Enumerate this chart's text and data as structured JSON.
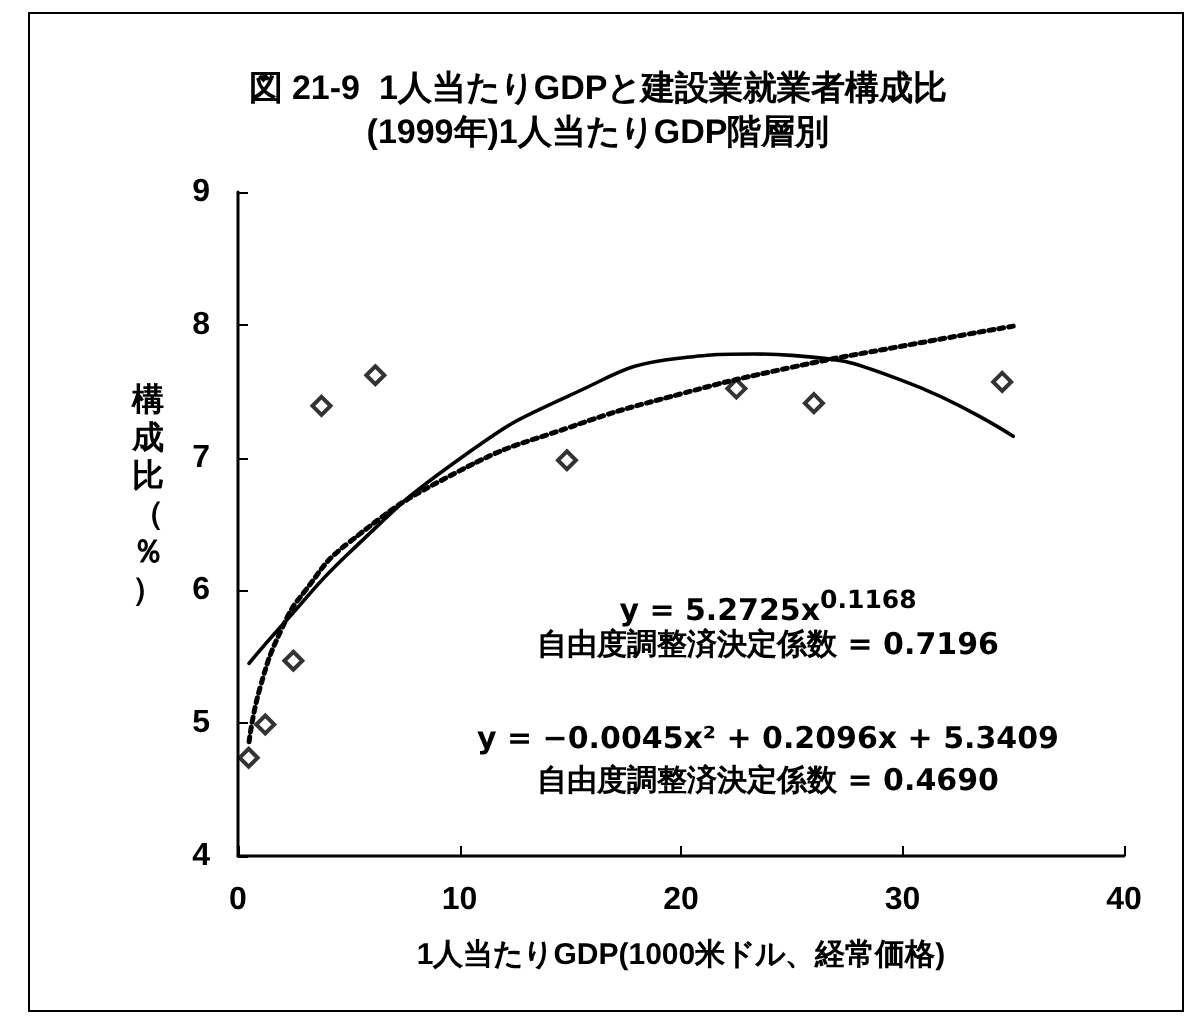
{
  "chart_data": {
    "type": "scatter",
    "title": "図 21-9  1人当たりGDPと建設業就業者構成比\n(1999年)1人当たりGDP階層別",
    "xlabel": "1人当たりGDP(1000米ドル、経常価格)",
    "ylabel": "構成比（％）",
    "xlim": [
      0,
      40
    ],
    "xticks": [
      0,
      10,
      20,
      30,
      40
    ],
    "ylim": [
      4,
      9
    ],
    "yticks": [
      4,
      5,
      6,
      7,
      8,
      9
    ],
    "grid": false,
    "annotations": [
      "y = 5.2725x$^{0.1168}$",
      "自由度調整済決定係数 = 0.7196",
      "y = −0.0045x² + 0.2096x + 5.3409",
      "自由度調整済決定係数 = 0.4690"
    ],
    "series": [
      {
        "color": "#000000",
        "marker": "diamond",
        "x": [
          0.48,
          1.23,
          2.5,
          3.77,
          6.2,
          14.85,
          22.5,
          26.0,
          34.5
        ],
        "values": [
          4.74,
          4.99,
          5.47,
          7.39,
          7.62,
          6.98,
          7.52,
          7.41,
          7.57
        ]
      },
      {
        "type": "line",
        "color": "#000000",
        "marker": "none",
        "line_style": "dotted",
        "x": [
          0.5,
          1,
          2,
          3,
          5,
          10,
          15,
          20,
          25,
          30,
          35
        ],
        "values": [
          4.86,
          5.27,
          5.72,
          5.99,
          6.36,
          6.9,
          7.23,
          7.48,
          7.68,
          7.84,
          7.99
        ]
      },
      {
        "type": "line",
        "color": "#000000",
        "marker": "none",
        "line_style": "solid",
        "x": [
          0.5,
          1,
          2,
          5,
          10,
          15,
          20,
          23.3,
          25,
          30,
          35
        ],
        "values": [
          5.45,
          5.55,
          5.74,
          6.28,
          6.99,
          7.47,
          7.75,
          7.78,
          7.77,
          7.58,
          7.16
        ]
      }
    ]
  }
}
